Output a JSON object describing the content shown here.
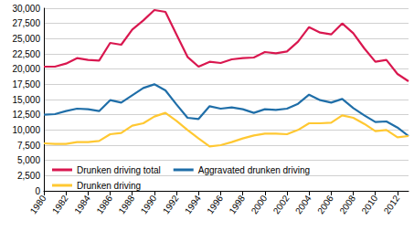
{
  "chart_data": {
    "type": "line",
    "x": [
      1980,
      1981,
      1982,
      1983,
      1984,
      1985,
      1986,
      1987,
      1988,
      1989,
      1990,
      1991,
      1992,
      1993,
      1994,
      1995,
      1996,
      1997,
      1998,
      1999,
      2000,
      2001,
      2002,
      2003,
      2004,
      2005,
      2006,
      2007,
      2008,
      2009,
      2010,
      2011,
      2012,
      2013
    ],
    "series": [
      {
        "name": "Drunken driving total",
        "color": "#d9174f",
        "values": [
          20400,
          20400,
          20900,
          21800,
          21500,
          21400,
          24300,
          24000,
          26500,
          28000,
          29700,
          29400,
          25700,
          22000,
          20400,
          21200,
          21000,
          21600,
          21800,
          21900,
          22800,
          22600,
          22900,
          24500,
          26900,
          26000,
          25700,
          27500,
          25900,
          23400,
          21200,
          21500,
          19200,
          18000
        ]
      },
      {
        "name": "Aggravated drunken driving",
        "color": "#1f6ea8",
        "values": [
          12500,
          12600,
          13100,
          13500,
          13400,
          13100,
          14900,
          14500,
          15700,
          16900,
          17500,
          16500,
          14200,
          12000,
          11800,
          13900,
          13500,
          13700,
          13400,
          12800,
          13400,
          13300,
          13500,
          14300,
          15800,
          14900,
          14500,
          15100,
          13600,
          12400,
          11300,
          11400,
          10400,
          9000
        ]
      },
      {
        "name": "Drunken driving",
        "color": "#ffc832",
        "values": [
          7800,
          7700,
          7700,
          8000,
          8000,
          8200,
          9300,
          9500,
          10700,
          11100,
          12200,
          12800,
          11500,
          10000,
          8600,
          7300,
          7500,
          8000,
          8600,
          9100,
          9400,
          9400,
          9300,
          10000,
          11100,
          11100,
          11200,
          12400,
          12000,
          11000,
          9800,
          10000,
          8800,
          9000
        ]
      }
    ],
    "xlim": [
      1980,
      2013
    ],
    "xticks": [
      1980,
      1982,
      1984,
      1986,
      1988,
      1990,
      1992,
      1994,
      1996,
      1998,
      2000,
      2002,
      2004,
      2006,
      2008,
      2010,
      2012
    ],
    "ylim": [
      0,
      30000
    ],
    "yticks": [
      0,
      {
        "value": 2500,
        "label": "2,500"
      },
      {
        "value": 5000,
        "label": "5,000"
      },
      {
        "value": 7500,
        "label": "7,500"
      },
      {
        "value": 10000,
        "label": "10,000"
      },
      {
        "value": 12500,
        "label": "12,500"
      },
      {
        "value": 15000,
        "label": "15,000"
      },
      {
        "value": 17500,
        "label": "17,500"
      },
      {
        "value": 20000,
        "label": "20,000"
      },
      {
        "value": 22500,
        "label": "22,500"
      },
      {
        "value": 25000,
        "label": "25,000"
      },
      {
        "value": 27500,
        "label": "27,500"
      },
      {
        "value": 30000,
        "label": "30,000"
      }
    ],
    "grid": true,
    "legend": "bottom"
  }
}
